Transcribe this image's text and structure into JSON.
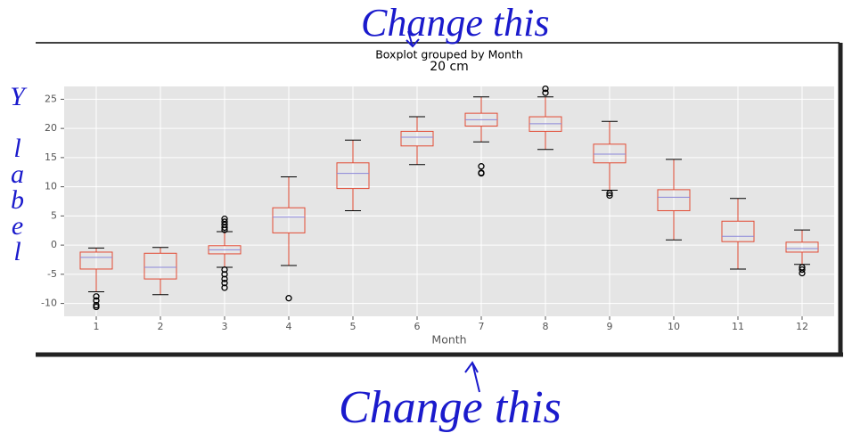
{
  "chart_data": {
    "type": "box",
    "title": "Boxplot grouped by Month",
    "subtitle": "20 cm",
    "x_label": "Month",
    "categories": [
      "1",
      "2",
      "3",
      "4",
      "5",
      "6",
      "7",
      "8",
      "9",
      "10",
      "11",
      "12"
    ],
    "boxes": [
      {
        "whislo": -8.0,
        "q1": -4.1,
        "median": -2.1,
        "q3": -1.2,
        "whishi": -0.5,
        "fliers": [
          -8.8,
          -9.5,
          -10.3,
          -10.6
        ]
      },
      {
        "whislo": -8.5,
        "q1": -5.8,
        "median": -3.8,
        "q3": -1.4,
        "whishi": -0.4,
        "fliers": []
      },
      {
        "whislo": -3.8,
        "q1": -1.5,
        "median": -0.8,
        "q3": -0.1,
        "whishi": 2.3,
        "fliers": [
          2.6,
          3.0,
          3.5,
          4.0,
          4.5,
          -4.2,
          -5.0,
          -5.8,
          -6.5,
          -7.3
        ]
      },
      {
        "whislo": -3.5,
        "q1": 2.1,
        "median": 4.8,
        "q3": 6.4,
        "whishi": 11.7,
        "fliers": [
          -9.1
        ]
      },
      {
        "whislo": 5.9,
        "q1": 9.7,
        "median": 12.3,
        "q3": 14.1,
        "whishi": 18.0,
        "fliers": []
      },
      {
        "whislo": 13.8,
        "q1": 17.0,
        "median": 18.5,
        "q3": 19.5,
        "whishi": 22.0,
        "fliers": []
      },
      {
        "whislo": 17.7,
        "q1": 20.4,
        "median": 21.5,
        "q3": 22.6,
        "whishi": 25.4,
        "fliers": [
          13.5,
          12.4,
          12.3
        ]
      },
      {
        "whislo": 16.4,
        "q1": 19.5,
        "median": 20.8,
        "q3": 22.0,
        "whishi": 25.4,
        "fliers": [
          26.8,
          26.1
        ]
      },
      {
        "whislo": 9.4,
        "q1": 14.1,
        "median": 15.6,
        "q3": 17.3,
        "whishi": 21.2,
        "fliers": [
          8.9,
          8.5
        ]
      },
      {
        "whislo": 0.9,
        "q1": 5.9,
        "median": 8.2,
        "q3": 9.5,
        "whishi": 14.7,
        "fliers": []
      },
      {
        "whislo": -4.1,
        "q1": 0.6,
        "median": 1.5,
        "q3": 4.1,
        "whishi": 8.0,
        "fliers": []
      },
      {
        "whislo": -3.3,
        "q1": -1.2,
        "median": -0.6,
        "q3": 0.5,
        "whishi": 2.6,
        "fliers": [
          -3.8,
          -4.2,
          -4.8
        ]
      }
    ],
    "box_color": "#e24a33",
    "median_color": "#8a86d9",
    "cap_color": "#000000",
    "ylim": [
      -12.2,
      27.2
    ],
    "yticks": [
      -10,
      -5,
      0,
      5,
      10,
      15,
      20,
      25
    ],
    "grid": true,
    "annotations": [
      {
        "text": "Change this",
        "color": "#1a1acc"
      },
      {
        "text": "Change this",
        "color": "#1a1acc"
      },
      {
        "text": "Y label",
        "color": "#1a1acc"
      }
    ]
  }
}
